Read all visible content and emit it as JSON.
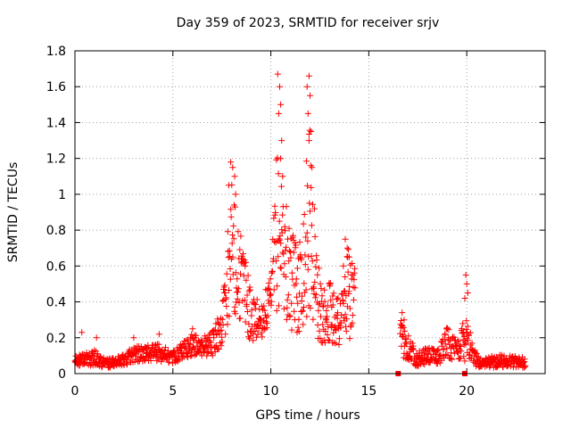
{
  "chart_data": {
    "type": "scatter",
    "title": "Day 359 of 2023, SRMTID for receiver srjv",
    "xlabel": "GPS time / hours",
    "ylabel": "SRMTID / TECUs",
    "xlim": [
      0,
      24
    ],
    "ylim": [
      0,
      1.8
    ],
    "x_ticks": [
      0,
      5,
      10,
      15,
      20
    ],
    "x_tick_labels": [
      "0",
      "5",
      "10",
      "15",
      "20"
    ],
    "y_ticks": [
      0,
      0.2,
      0.4,
      0.6,
      0.8,
      1.0,
      1.2,
      1.4,
      1.6,
      1.8
    ],
    "y_tick_labels": [
      "0",
      "0.2",
      "0.4",
      "0.6",
      "0.8",
      "1",
      "1.2",
      "1.4",
      "1.6",
      "1.8"
    ],
    "grid": true,
    "marker": "+",
    "series_color": "#ff0000",
    "profile": [
      [
        0.0,
        0.07,
        0.03
      ],
      [
        0.5,
        0.08,
        0.04
      ],
      [
        1.0,
        0.09,
        0.05
      ],
      [
        1.5,
        0.06,
        0.03
      ],
      [
        2.0,
        0.06,
        0.03
      ],
      [
        2.5,
        0.08,
        0.04
      ],
      [
        3.0,
        0.11,
        0.05
      ],
      [
        3.5,
        0.11,
        0.05
      ],
      [
        4.0,
        0.12,
        0.06
      ],
      [
        4.5,
        0.11,
        0.05
      ],
      [
        5.0,
        0.09,
        0.04
      ],
      [
        5.5,
        0.13,
        0.06
      ],
      [
        6.0,
        0.16,
        0.07
      ],
      [
        6.5,
        0.15,
        0.06
      ],
      [
        7.0,
        0.17,
        0.08
      ],
      [
        7.5,
        0.25,
        0.12
      ],
      [
        7.8,
        0.55,
        0.35
      ],
      [
        8.0,
        0.75,
        0.4
      ],
      [
        8.3,
        0.6,
        0.35
      ],
      [
        8.7,
        0.45,
        0.25
      ],
      [
        9.0,
        0.3,
        0.15
      ],
      [
        9.5,
        0.3,
        0.12
      ],
      [
        10.0,
        0.4,
        0.15
      ],
      [
        10.3,
        0.8,
        0.5
      ],
      [
        10.6,
        0.75,
        0.45
      ],
      [
        11.0,
        0.5,
        0.3
      ],
      [
        11.5,
        0.5,
        0.3
      ],
      [
        12.0,
        0.9,
        0.6
      ],
      [
        12.3,
        0.5,
        0.35
      ],
      [
        12.6,
        0.3,
        0.15
      ],
      [
        13.0,
        0.35,
        0.2
      ],
      [
        13.5,
        0.3,
        0.18
      ],
      [
        14.0,
        0.45,
        0.3
      ],
      [
        14.3,
        0.4,
        0.2
      ],
      [
        16.7,
        0.2,
        0.12
      ],
      [
        17.0,
        0.15,
        0.08
      ],
      [
        17.5,
        0.08,
        0.05
      ],
      [
        18.0,
        0.1,
        0.05
      ],
      [
        18.5,
        0.09,
        0.05
      ],
      [
        19.0,
        0.18,
        0.1
      ],
      [
        19.5,
        0.12,
        0.07
      ],
      [
        20.0,
        0.25,
        0.2
      ],
      [
        20.3,
        0.1,
        0.06
      ],
      [
        20.7,
        0.06,
        0.03
      ],
      [
        21.0,
        0.06,
        0.03
      ],
      [
        21.5,
        0.07,
        0.04
      ],
      [
        22.0,
        0.07,
        0.04
      ],
      [
        22.5,
        0.07,
        0.04
      ],
      [
        23.0,
        0.06,
        0.03
      ]
    ],
    "segments": [
      [
        0.0,
        14.3
      ],
      [
        16.6,
        23.0
      ]
    ],
    "extra_points": [
      [
        10.35,
        1.67
      ],
      [
        10.45,
        1.6
      ],
      [
        10.5,
        1.5
      ],
      [
        10.4,
        1.45
      ],
      [
        10.55,
        1.3
      ],
      [
        10.5,
        1.2
      ],
      [
        10.6,
        1.1
      ],
      [
        11.95,
        1.66
      ],
      [
        11.85,
        1.6
      ],
      [
        12.0,
        1.55
      ],
      [
        11.9,
        1.45
      ],
      [
        12.05,
        1.35
      ],
      [
        11.95,
        1.3
      ],
      [
        12.1,
        1.15
      ],
      [
        7.95,
        1.18
      ],
      [
        8.05,
        1.15
      ],
      [
        8.15,
        1.1
      ],
      [
        7.85,
        1.05
      ],
      [
        8.2,
        1.0
      ],
      [
        13.8,
        0.75
      ],
      [
        13.9,
        0.7
      ],
      [
        14.0,
        0.65
      ],
      [
        13.7,
        0.6
      ],
      [
        19.95,
        0.55
      ],
      [
        20.0,
        0.5
      ],
      [
        20.05,
        0.45
      ],
      [
        19.9,
        0.42
      ],
      [
        16.7,
        0.34
      ],
      [
        16.8,
        0.3
      ],
      [
        0.35,
        0.23
      ],
      [
        1.1,
        0.2
      ],
      [
        3.0,
        0.2
      ],
      [
        4.3,
        0.22
      ],
      [
        6.0,
        0.25
      ]
    ],
    "marker_squares": [
      [
        16.5,
        0.0
      ],
      [
        19.9,
        0.0
      ]
    ],
    "sample_step_hours": 0.017
  }
}
